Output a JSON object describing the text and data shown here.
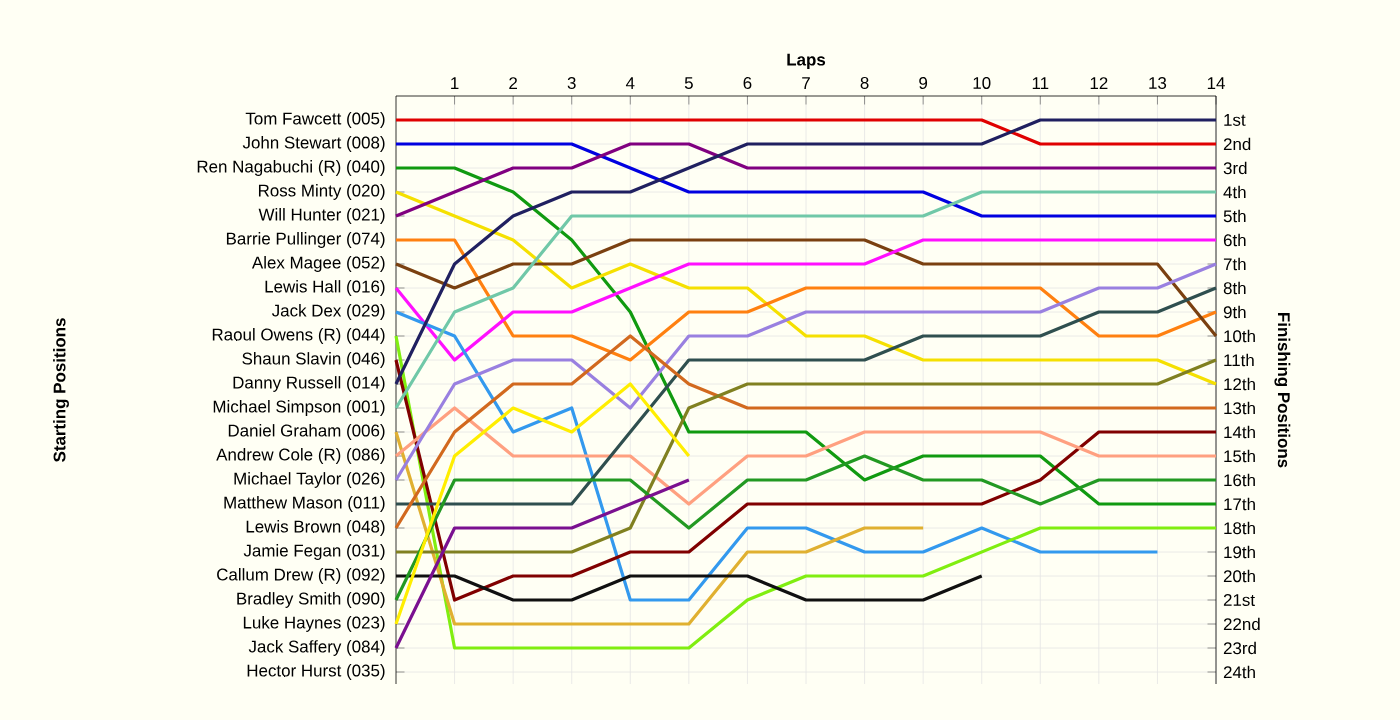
{
  "chart_data": {
    "type": "line",
    "xlabel": "Laps",
    "ylabel": "Finishing Positions",
    "x": [
      0,
      1,
      2,
      3,
      4,
      5,
      6,
      7,
      8,
      9,
      10,
      11,
      12,
      13,
      14
    ],
    "xlim": [
      0,
      14
    ],
    "xticks": [
      1,
      2,
      3,
      4,
      5,
      6,
      7,
      8,
      9,
      10,
      11,
      12,
      13,
      14
    ],
    "ylim": [
      24.5,
      0
    ],
    "grid": true,
    "line_style": "solid",
    "yticks": [
      {
        "value": 1,
        "label": "1st"
      },
      {
        "value": 2,
        "label": "2nd"
      },
      {
        "value": 3,
        "label": "3rd"
      },
      {
        "value": 4,
        "label": "4th"
      },
      {
        "value": 5,
        "label": "5th"
      },
      {
        "value": 6,
        "label": "6th"
      },
      {
        "value": 7,
        "label": "7th"
      },
      {
        "value": 8,
        "label": "8th"
      },
      {
        "value": 9,
        "label": "9th"
      },
      {
        "value": 10,
        "label": "10th"
      },
      {
        "value": 11,
        "label": "11th"
      },
      {
        "value": 12,
        "label": "12th"
      },
      {
        "value": 13,
        "label": "13th"
      },
      {
        "value": 14,
        "label": "14th"
      },
      {
        "value": 15,
        "label": "15th"
      },
      {
        "value": 16,
        "label": "16th"
      },
      {
        "value": 17,
        "label": "17th"
      },
      {
        "value": 18,
        "label": "18th"
      },
      {
        "value": 19,
        "label": "19th"
      },
      {
        "value": 20,
        "label": "20th"
      },
      {
        "value": 21,
        "label": "21st"
      },
      {
        "value": 22,
        "label": "22nd"
      },
      {
        "value": 23,
        "label": "23rd"
      },
      {
        "value": 24,
        "label": "24th"
      }
    ],
    "annotations": [
      "Starting Positions",
      "Tom Fawcett (005)",
      "John Stewart (008)",
      "Ren Nagabuchi (R) (040)",
      "Ross Minty (020)",
      "Will Hunter (021)",
      "Barrie Pullinger (074)",
      "Alex Magee (052)",
      "Lewis Hall (016)",
      "Jack Dex (029)",
      "Raoul Owens (R) (044)",
      "Shaun Slavin (046)",
      "Danny Russell (014)",
      "Michael Simpson (001)",
      "Daniel Graham (006)",
      "Andrew Cole (R) (086)",
      "Michael Taylor (026)",
      "Matthew Mason (011)",
      "Lewis Brown (048)",
      "Jamie Fegan (031)",
      "Callum Drew (R) (092)",
      "Bradley Smith (090)",
      "Luke Haynes (023)",
      "Jack Saffery (084)",
      "Hector Hurst (035)"
    ],
    "series": [
      {
        "color": "#e00000",
        "values": [
          1,
          1,
          1,
          1,
          1,
          1,
          1,
          1,
          1,
          1,
          1,
          2,
          2,
          2,
          2
        ]
      },
      {
        "color": "#0000e0",
        "values": [
          2,
          2,
          2,
          2,
          3,
          4,
          4,
          4,
          4,
          4,
          5,
          5,
          5,
          5,
          5
        ]
      },
      {
        "color": "#109a10",
        "values": [
          3,
          3,
          4,
          6,
          9,
          14,
          14,
          14,
          16,
          15,
          15,
          15,
          17,
          17,
          17
        ]
      },
      {
        "color": "#f5e000",
        "values": [
          4,
          5,
          6,
          8,
          7,
          8,
          8,
          10,
          10,
          11,
          11,
          11,
          11,
          11,
          12
        ]
      },
      {
        "color": "#800080",
        "values": [
          5,
          4,
          3,
          3,
          2,
          2,
          3,
          3,
          3,
          3,
          3,
          3,
          3,
          3,
          3
        ]
      },
      {
        "color": "#ff8010",
        "values": [
          6,
          6,
          10,
          10,
          11,
          9,
          9,
          8,
          8,
          8,
          8,
          8,
          10,
          10,
          9
        ]
      },
      {
        "color": "#7a4010",
        "values": [
          7,
          8,
          7,
          7,
          6,
          6,
          6,
          6,
          6,
          7,
          7,
          7,
          7,
          7,
          10
        ]
      },
      {
        "color": "#ff10ff",
        "values": [
          8,
          11,
          9,
          9,
          8,
          7,
          7,
          7,
          7,
          6,
          6,
          6,
          6,
          6,
          6
        ]
      },
      {
        "color": "#3399ee",
        "values": [
          9,
          10,
          14,
          13,
          21,
          21,
          18,
          18,
          19,
          19,
          18,
          19,
          19,
          19,
          null
        ]
      },
      {
        "color": "#80ee10",
        "values": [
          10,
          23,
          23,
          23,
          23,
          23,
          21,
          20,
          20,
          20,
          19,
          18,
          18,
          18,
          18
        ]
      },
      {
        "color": "#800000",
        "values": [
          11,
          21,
          20,
          20,
          19,
          19,
          17,
          17,
          17,
          17,
          17,
          16,
          14,
          14,
          14
        ]
      },
      {
        "color": "#202060",
        "values": [
          12,
          7,
          5,
          4,
          4,
          3,
          2,
          2,
          2,
          2,
          2,
          1,
          1,
          1,
          1
        ]
      },
      {
        "color": "#70c8a8",
        "values": [
          13,
          9,
          8,
          5,
          5,
          5,
          5,
          5,
          5,
          5,
          4,
          4,
          4,
          4,
          4
        ]
      },
      {
        "color": "#e0b030",
        "values": [
          14,
          22,
          22,
          22,
          22,
          22,
          19,
          19,
          18,
          18,
          null,
          null,
          null,
          null,
          null
        ]
      },
      {
        "color": "#ffa080",
        "values": [
          15,
          13,
          15,
          15,
          15,
          17,
          15,
          15,
          14,
          14,
          14,
          14,
          15,
          15,
          15
        ]
      },
      {
        "color": "#9980e0",
        "values": [
          16,
          12,
          11,
          11,
          13,
          10,
          10,
          9,
          9,
          9,
          9,
          9,
          8,
          8,
          7
        ]
      },
      {
        "color": "#2f4f4f",
        "values": [
          17,
          17,
          17,
          17,
          14,
          11,
          11,
          11,
          11,
          10,
          10,
          10,
          9,
          9,
          8
        ]
      },
      {
        "color": "#d2691e",
        "values": [
          18,
          14,
          12,
          12,
          10,
          12,
          13,
          13,
          13,
          13,
          13,
          13,
          13,
          13,
          13
        ]
      },
      {
        "color": "#808020",
        "values": [
          19,
          19,
          19,
          19,
          18,
          13,
          12,
          12,
          12,
          12,
          12,
          12,
          12,
          12,
          11
        ]
      },
      {
        "color": "#101010",
        "values": [
          20,
          20,
          21,
          21,
          20,
          20,
          20,
          21,
          21,
          21,
          20,
          null,
          null,
          null,
          null
        ]
      },
      {
        "color": "#229922",
        "values": [
          21,
          16,
          16,
          16,
          16,
          18,
          16,
          16,
          15,
          16,
          16,
          17,
          16,
          16,
          16
        ]
      },
      {
        "color": "#ffee00",
        "values": [
          22,
          15,
          13,
          14,
          12,
          15,
          null,
          null,
          null,
          null,
          null,
          null,
          null,
          null,
          null
        ]
      },
      {
        "color": "#7a1090",
        "values": [
          23,
          18,
          18,
          18,
          17,
          16,
          null,
          null,
          null,
          null,
          null,
          null,
          null,
          null,
          null
        ]
      }
    ]
  }
}
